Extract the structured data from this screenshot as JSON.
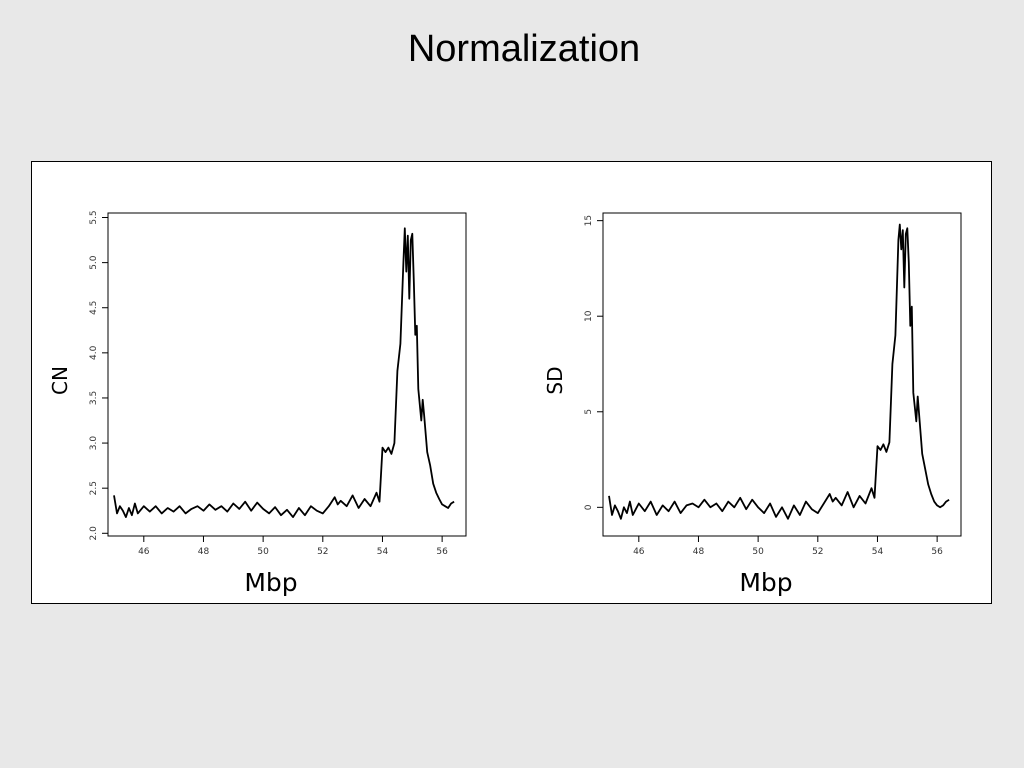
{
  "slide": {
    "title": "Normalization"
  },
  "chart_data": [
    {
      "type": "line",
      "ylabel": "CN",
      "xlabel": "Mbp",
      "xlim": [
        44.8,
        56.8
      ],
      "ylim": [
        1.97,
        5.55
      ],
      "xticks": [
        46,
        48,
        50,
        52,
        54,
        56
      ],
      "yticks": [
        "2.0",
        "2.5",
        "3.0",
        "3.5",
        "4.0",
        "4.5",
        "5.0",
        "5.5"
      ],
      "grid": false,
      "line_color": "#000000",
      "series": [
        {
          "x": [
            45.0,
            45.1,
            45.2,
            45.3,
            45.4,
            45.5,
            45.6,
            45.7,
            45.8,
            45.9,
            46.0,
            46.2,
            46.4,
            46.6,
            46.8,
            47.0,
            47.2,
            47.4,
            47.6,
            47.8,
            48.0,
            48.2,
            48.4,
            48.6,
            48.8,
            49.0,
            49.2,
            49.4,
            49.6,
            49.8,
            50.0,
            50.2,
            50.4,
            50.6,
            50.8,
            51.0,
            51.2,
            51.4,
            51.6,
            51.8,
            52.0,
            52.2,
            52.4,
            52.5,
            52.6,
            52.8,
            53.0,
            53.2,
            53.4,
            53.6,
            53.8,
            53.9,
            54.0,
            54.1,
            54.2,
            54.3,
            54.4,
            54.5,
            54.6,
            54.7,
            54.75,
            54.8,
            54.85,
            54.9,
            54.95,
            55.0,
            55.05,
            55.1,
            55.15,
            55.2,
            55.3,
            55.35,
            55.4,
            55.5,
            55.6,
            55.7,
            55.8,
            55.9,
            56.0,
            56.1,
            56.2,
            56.3,
            56.4
          ],
          "y": [
            2.42,
            2.22,
            2.3,
            2.25,
            2.18,
            2.28,
            2.2,
            2.33,
            2.22,
            2.26,
            2.3,
            2.24,
            2.3,
            2.22,
            2.28,
            2.24,
            2.3,
            2.22,
            2.27,
            2.3,
            2.25,
            2.32,
            2.26,
            2.3,
            2.24,
            2.33,
            2.27,
            2.35,
            2.25,
            2.34,
            2.27,
            2.22,
            2.29,
            2.2,
            2.26,
            2.18,
            2.28,
            2.2,
            2.3,
            2.25,
            2.22,
            2.3,
            2.4,
            2.32,
            2.36,
            2.3,
            2.42,
            2.28,
            2.38,
            2.3,
            2.45,
            2.35,
            2.95,
            2.9,
            2.95,
            2.88,
            3.0,
            3.8,
            4.1,
            5.0,
            5.38,
            4.9,
            5.3,
            4.6,
            5.25,
            5.32,
            4.8,
            4.2,
            4.3,
            3.6,
            3.25,
            3.48,
            3.3,
            2.9,
            2.75,
            2.55,
            2.45,
            2.38,
            2.32,
            2.3,
            2.28,
            2.33,
            2.35
          ]
        }
      ]
    },
    {
      "type": "line",
      "ylabel": "SD",
      "xlabel": "Mbp",
      "xlim": [
        44.8,
        56.8
      ],
      "ylim": [
        -1.5,
        15.4
      ],
      "xticks": [
        46,
        48,
        50,
        52,
        54,
        56
      ],
      "yticks": [
        "0",
        "5",
        "10",
        "15"
      ],
      "grid": false,
      "line_color": "#000000",
      "series": [
        {
          "x": [
            45.0,
            45.1,
            45.2,
            45.3,
            45.4,
            45.5,
            45.6,
            45.7,
            45.8,
            45.9,
            46.0,
            46.2,
            46.4,
            46.6,
            46.8,
            47.0,
            47.2,
            47.4,
            47.6,
            47.8,
            48.0,
            48.2,
            48.4,
            48.6,
            48.8,
            49.0,
            49.2,
            49.4,
            49.6,
            49.8,
            50.0,
            50.2,
            50.4,
            50.6,
            50.8,
            51.0,
            51.2,
            51.4,
            51.6,
            51.8,
            52.0,
            52.2,
            52.4,
            52.5,
            52.6,
            52.8,
            53.0,
            53.2,
            53.4,
            53.6,
            53.8,
            53.9,
            54.0,
            54.1,
            54.2,
            54.3,
            54.4,
            54.5,
            54.6,
            54.7,
            54.75,
            54.8,
            54.85,
            54.9,
            54.95,
            55.0,
            55.05,
            55.1,
            55.15,
            55.2,
            55.3,
            55.35,
            55.4,
            55.5,
            55.6,
            55.7,
            55.8,
            55.9,
            56.0,
            56.1,
            56.2,
            56.3,
            56.4
          ],
          "y": [
            0.6,
            -0.4,
            0.1,
            -0.2,
            -0.6,
            0.0,
            -0.3,
            0.3,
            -0.4,
            -0.1,
            0.2,
            -0.2,
            0.3,
            -0.4,
            0.1,
            -0.2,
            0.3,
            -0.3,
            0.1,
            0.2,
            0.0,
            0.4,
            0.0,
            0.2,
            -0.2,
            0.3,
            0.0,
            0.5,
            -0.1,
            0.4,
            0.0,
            -0.3,
            0.2,
            -0.5,
            0.0,
            -0.6,
            0.1,
            -0.4,
            0.3,
            -0.1,
            -0.3,
            0.2,
            0.7,
            0.3,
            0.5,
            0.1,
            0.8,
            0.0,
            0.6,
            0.2,
            1.0,
            0.5,
            3.2,
            3.0,
            3.3,
            2.9,
            3.4,
            7.5,
            9.0,
            14.0,
            14.8,
            13.5,
            14.5,
            11.5,
            14.3,
            14.6,
            12.8,
            9.5,
            10.5,
            6.0,
            4.5,
            5.8,
            4.8,
            2.8,
            2.0,
            1.2,
            0.7,
            0.3,
            0.1,
            0.0,
            0.1,
            0.3,
            0.4
          ]
        }
      ]
    }
  ]
}
